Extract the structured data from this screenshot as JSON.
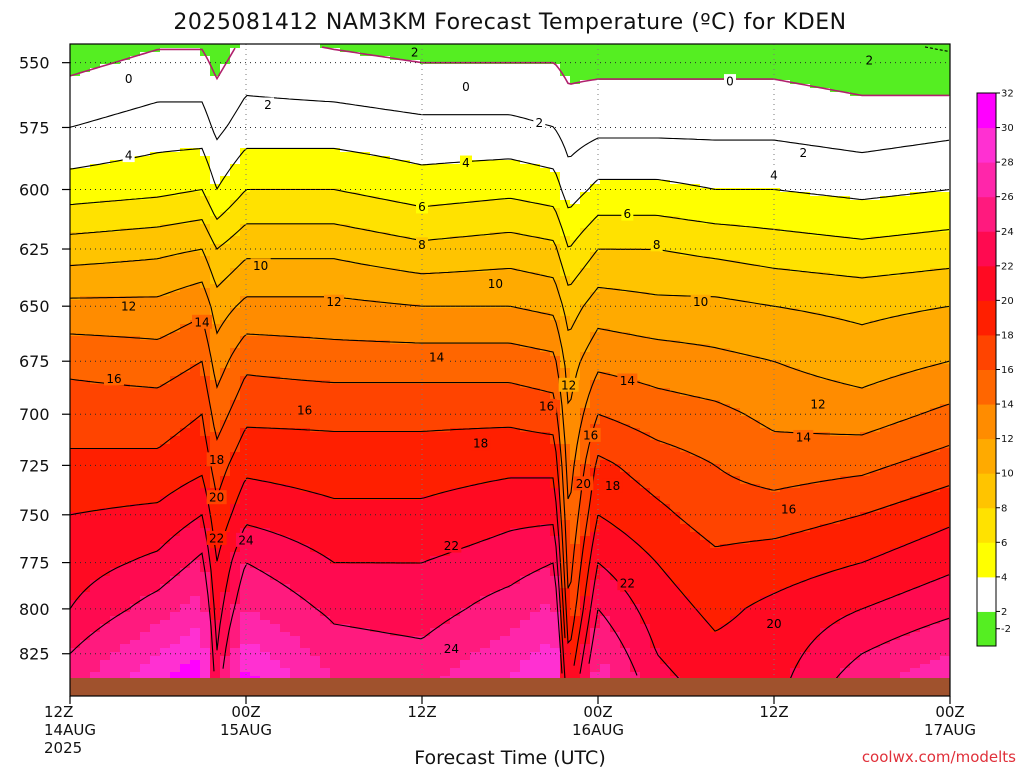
{
  "chart_data": {
    "type": "heatmap",
    "title": "2025081412 NAM3KM Forecast Temperature (ºC) for KDEN",
    "xlabel": "Forecast Time (UTC)",
    "credit": "coolwx.com/modelts",
    "y_axis": {
      "quantity": "pressure (hPa)",
      "range": [
        840,
        543
      ],
      "ticks": [
        550,
        575,
        600,
        625,
        650,
        675,
        700,
        725,
        750,
        775,
        800,
        825
      ]
    },
    "x_axis": {
      "range_hours": [
        0,
        60
      ],
      "ticks": [
        {
          "hour": 0,
          "lines": [
            "12Z",
            "14AUG",
            "2025"
          ]
        },
        {
          "hour": 12,
          "lines": [
            "00Z",
            "15AUG"
          ]
        },
        {
          "hour": 24,
          "lines": [
            "12Z"
          ]
        },
        {
          "hour": 36,
          "lines": [
            "00Z",
            "16AUG"
          ]
        },
        {
          "hour": 48,
          "lines": [
            "12Z"
          ]
        },
        {
          "hour": 60,
          "lines": [
            "00Z",
            "17AUG"
          ]
        }
      ]
    },
    "grid": {
      "dotted": true,
      "x_every_hours": 12,
      "y_every_hpa": 25
    },
    "colorbar": {
      "placement": "right",
      "levels": [
        -2,
        2,
        4,
        6,
        8,
        10,
        12,
        14,
        16,
        18,
        20,
        22,
        24,
        26,
        28,
        30,
        32
      ],
      "labels": [
        "-2",
        "2",
        "4",
        "6",
        "8",
        "10",
        "12",
        "14",
        "16",
        "18",
        "20",
        "22",
        "24",
        "26",
        "28",
        "30",
        "32"
      ],
      "colors": [
        "#55ee22",
        "#ffffff",
        "#ffff00",
        "#ffe200",
        "#ffc400",
        "#ffaa00",
        "#ff8c00",
        "#ff6600",
        "#ff4400",
        "#ff1f00",
        "#ff0a22",
        "#ff0a50",
        "#ff1a7e",
        "#ff26aa",
        "#ff30d2",
        "#ff00ff"
      ]
    },
    "surface_color": "#a0522d",
    "zero_line_color": "#b0206c",
    "contour_levels": [
      -2,
      0,
      2,
      4,
      6,
      8,
      10,
      12,
      14,
      16,
      18,
      20,
      22,
      24
    ],
    "profile_pressure_hpa": [
      825,
      800,
      775,
      750,
      725,
      700,
      675,
      650,
      625,
      600,
      575,
      550
    ],
    "profiles": [
      {
        "hour": 0,
        "temps": [
          24,
          22,
          21,
          20,
          18.5,
          17,
          15.5,
          12.5,
          9,
          5,
          2,
          -0.5
        ]
      },
      {
        "hour": 6,
        "temps": [
          28,
          25,
          22.5,
          20.5,
          18.5,
          17,
          15,
          12.5,
          9.5,
          5.5,
          3,
          0.5
        ]
      },
      {
        "hour": 9,
        "temps": [
          30,
          27,
          24.5,
          22,
          19.5,
          18,
          16,
          13.5,
          10,
          6,
          3,
          0.5
        ]
      },
      {
        "hour": 10,
        "temps": [
          22,
          21,
          20,
          18.5,
          17,
          15,
          13,
          11,
          8,
          4,
          1.5,
          -0.5
        ]
      },
      {
        "hour": 12,
        "temps": [
          29,
          26,
          24,
          21.5,
          19.5,
          17.5,
          15.5,
          12.5,
          9.5,
          6,
          3,
          1
        ]
      },
      {
        "hour": 18,
        "temps": [
          25,
          23.5,
          22,
          20.5,
          19,
          17.5,
          15,
          12.5,
          9.5,
          6,
          3,
          0.5
        ]
      },
      {
        "hour": 24,
        "temps": [
          24.5,
          23,
          22,
          20.5,
          19,
          17.5,
          15,
          12,
          8.5,
          5,
          2.5,
          0
        ]
      },
      {
        "hour": 30,
        "temps": [
          27,
          25,
          23,
          21.5,
          19.5,
          17.5,
          15,
          12,
          9,
          5.5,
          2.5,
          0
        ]
      },
      {
        "hour": 33,
        "temps": [
          29,
          26.5,
          24,
          21.5,
          19.5,
          17,
          14.5,
          11.5,
          8.5,
          5,
          2,
          0
        ]
      },
      {
        "hour": 34,
        "temps": [
          18,
          16,
          15,
          14,
          13,
          12,
          11,
          9,
          6,
          3,
          1,
          -0.5
        ]
      },
      {
        "hour": 36,
        "temps": [
          26,
          24,
          22,
          20,
          18.5,
          16,
          13.5,
          11,
          8,
          4.5,
          1.5,
          -0.5
        ]
      },
      {
        "hour": 40,
        "temps": [
          22,
          21,
          20,
          18.5,
          17,
          15,
          13,
          10.5,
          8,
          4.5,
          1.5,
          -0.5
        ]
      },
      {
        "hour": 44,
        "temps": [
          20.5,
          19.5,
          18.5,
          17,
          16,
          14.5,
          12.5,
          10.5,
          7.5,
          4,
          1.5,
          -0.5
        ]
      },
      {
        "hour": 48,
        "temps": [
          21,
          20.5,
          19,
          17,
          15,
          13.5,
          12,
          10,
          7,
          4,
          1.5,
          -0.5
        ]
      },
      {
        "hour": 54,
        "temps": [
          24,
          22,
          20,
          18,
          15.5,
          13,
          11,
          9.5,
          6.5,
          3.5,
          1,
          -1
        ]
      },
      {
        "hour": 60,
        "temps": [
          26,
          23.5,
          21.5,
          19.5,
          17,
          14.5,
          12,
          10,
          7,
          4,
          1.5,
          -1.5
        ]
      }
    ],
    "contour_labels": [
      {
        "text": "2",
        "hour": 23.5,
        "p": 546
      },
      {
        "text": "2",
        "hour": 54.5,
        "p": 549
      },
      {
        "text": "0",
        "hour": 4,
        "p": 556
      },
      {
        "text": "0",
        "hour": 27,
        "p": 559
      },
      {
        "text": "0",
        "hour": 45,
        "p": 557
      },
      {
        "text": "2",
        "hour": 13.5,
        "p": 566
      },
      {
        "text": "2",
        "hour": 32,
        "p": 573
      },
      {
        "text": "2",
        "hour": 50,
        "p": 585
      },
      {
        "text": "4",
        "hour": 4,
        "p": 586
      },
      {
        "text": "4",
        "hour": 27,
        "p": 589
      },
      {
        "text": "4",
        "hour": 48,
        "p": 594
      },
      {
        "text": "6",
        "hour": 24,
        "p": 607
      },
      {
        "text": "6",
        "hour": 38,
        "p": 610
      },
      {
        "text": "8",
        "hour": 24,
        "p": 623
      },
      {
        "text": "8",
        "hour": 40,
        "p": 623
      },
      {
        "text": "10",
        "hour": 13,
        "p": 632
      },
      {
        "text": "10",
        "hour": 29,
        "p": 640
      },
      {
        "text": "10",
        "hour": 43,
        "p": 648
      },
      {
        "text": "12",
        "hour": 4,
        "p": 650
      },
      {
        "text": "12",
        "hour": 18,
        "p": 648
      },
      {
        "text": "12",
        "hour": 34,
        "p": 686
      },
      {
        "text": "12",
        "hour": 51,
        "p": 695
      },
      {
        "text": "14",
        "hour": 9,
        "p": 657
      },
      {
        "text": "14",
        "hour": 25,
        "p": 673
      },
      {
        "text": "14",
        "hour": 38,
        "p": 684
      },
      {
        "text": "14",
        "hour": 50,
        "p": 711
      },
      {
        "text": "16",
        "hour": 3,
        "p": 683
      },
      {
        "text": "16",
        "hour": 16,
        "p": 698
      },
      {
        "text": "16",
        "hour": 32.5,
        "p": 696
      },
      {
        "text": "16",
        "hour": 35.5,
        "p": 710
      },
      {
        "text": "16",
        "hour": 49,
        "p": 747
      },
      {
        "text": "18",
        "hour": 10,
        "p": 722
      },
      {
        "text": "18",
        "hour": 28,
        "p": 714
      },
      {
        "text": "18",
        "hour": 37,
        "p": 735
      },
      {
        "text": "20",
        "hour": 10,
        "p": 741
      },
      {
        "text": "20",
        "hour": 35,
        "p": 734
      },
      {
        "text": "20",
        "hour": 48,
        "p": 808
      },
      {
        "text": "22",
        "hour": 10,
        "p": 762
      },
      {
        "text": "22",
        "hour": 26,
        "p": 766
      },
      {
        "text": "22",
        "hour": 38,
        "p": 786
      },
      {
        "text": "24",
        "hour": 12,
        "p": 763
      },
      {
        "text": "24",
        "hour": 26,
        "p": 822
      }
    ]
  }
}
